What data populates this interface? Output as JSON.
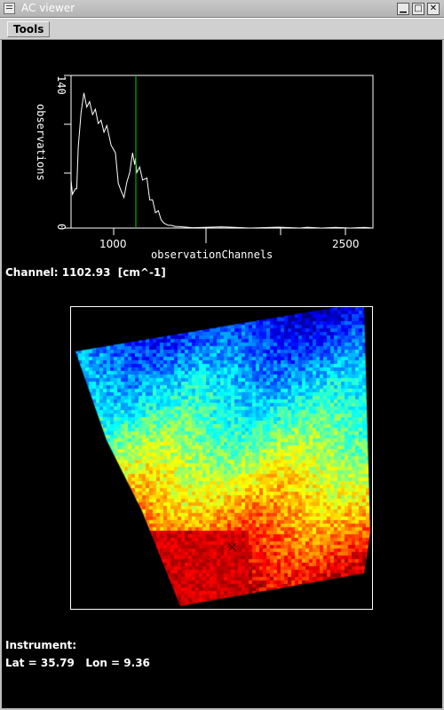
{
  "window": {
    "title": "AC viewer",
    "controls": {
      "minimize": "▁",
      "maximize": "□",
      "close": "✕"
    }
  },
  "menubar": {
    "items": [
      {
        "label": "Tools"
      }
    ]
  },
  "spectrum_plot": {
    "ylabel": "observations",
    "xlabel": "observationChannels",
    "y_tick_labels": [
      "140",
      "0"
    ],
    "x_tick_labels": [
      "1000",
      "2500"
    ],
    "colors": {
      "line": "#ffffff",
      "cursor": "#00cc00",
      "frame": "#ffffff"
    }
  },
  "chart_data": {
    "type": "line",
    "title": "",
    "xlabel": "observationChannels",
    "ylabel": "observations",
    "xlim": [
      650,
      2760
    ],
    "ylim": [
      0,
      140
    ],
    "cursor_x": 1102.93,
    "series": [
      {
        "x": [
          650,
          660,
          680,
          690,
          700,
          720,
          740,
          760,
          780,
          800,
          820,
          840,
          860,
          880,
          900,
          930,
          960,
          980,
          1000,
          1020,
          1040,
          1060,
          1080,
          1095,
          1100,
          1110,
          1130,
          1150,
          1180,
          1200,
          1220,
          1240,
          1260,
          1280,
          1300,
          1330,
          1350,
          1380,
          1400,
          1500,
          1700,
          1900,
          2100,
          2250,
          2300,
          2400,
          2500,
          2600,
          2700,
          2760
        ],
        "values": [
          40,
          35,
          32,
          40,
          70,
          110,
          120,
          115,
          112,
          108,
          105,
          100,
          95,
          92,
          90,
          80,
          65,
          45,
          30,
          32,
          38,
          55,
          65,
          62,
          60,
          55,
          52,
          48,
          42,
          30,
          22,
          18,
          12,
          8,
          4,
          3,
          2,
          2,
          1,
          0.8,
          0.6,
          0.5,
          0.3,
          0.1,
          0.2,
          0.1,
          0.1,
          0.1,
          0.1,
          0.1
        ]
      }
    ]
  },
  "channel_info": {
    "label": "Channel:",
    "value": "1102.93",
    "unit": "[cm^-1]"
  },
  "map": {
    "marker": "×",
    "colors": {
      "cold": "#0000ff",
      "mid": "#00e0ff",
      "warm": "#ff9900",
      "hot": "#ff0000"
    }
  },
  "instrument_info": {
    "label": "Instrument:",
    "lat_label": "Lat =",
    "lat_value": "35.79",
    "lon_label": "Lon =",
    "lon_value": "9.36"
  }
}
